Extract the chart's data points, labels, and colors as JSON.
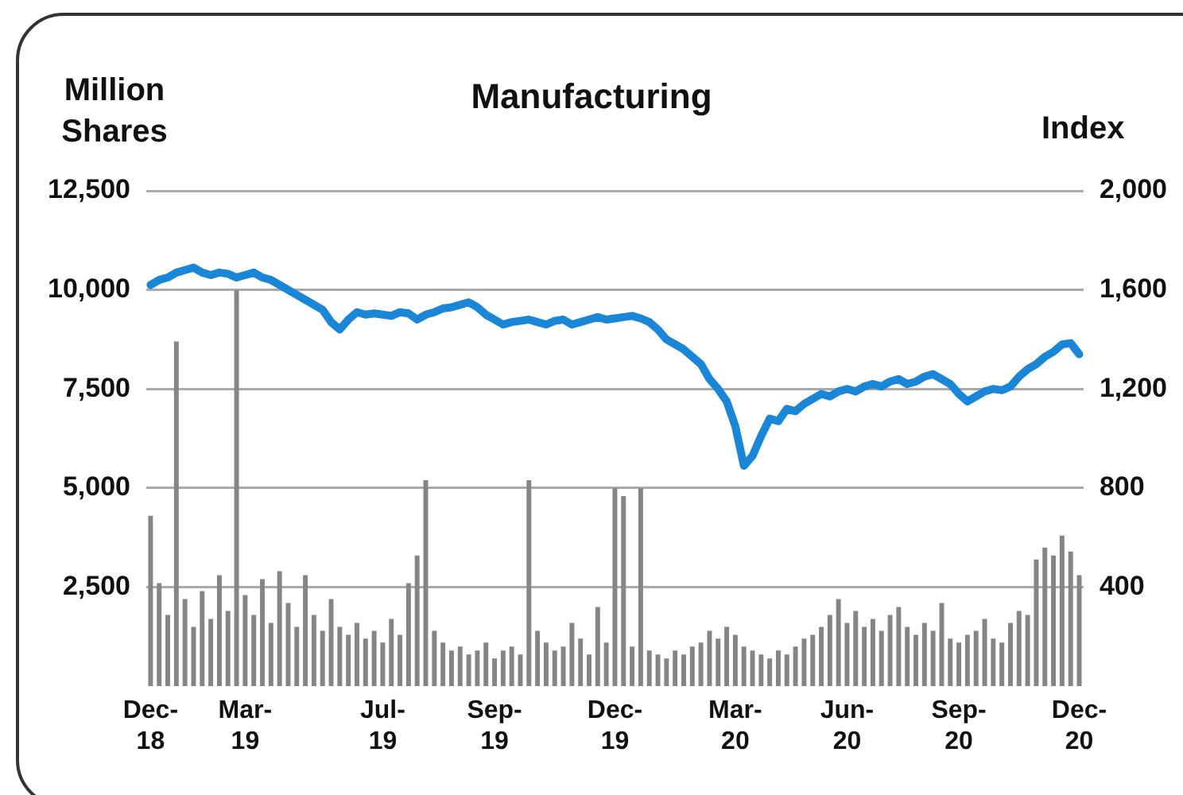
{
  "chart_data": {
    "type": "bar",
    "title": "Manufacturing",
    "ylabel": "Million Shares",
    "y2label": "Index",
    "categories": [
      "Dec-18",
      null,
      null,
      null,
      null,
      null,
      null,
      null,
      null,
      null,
      null,
      "Mar-19",
      null,
      null,
      null,
      null,
      null,
      null,
      null,
      null,
      null,
      null,
      null,
      null,
      null,
      null,
      null,
      "Jul-19",
      null,
      null,
      null,
      null,
      null,
      null,
      null,
      null,
      null,
      null,
      null,
      null,
      "Sep-19",
      null,
      null,
      null,
      null,
      null,
      null,
      null,
      null,
      null,
      null,
      null,
      null,
      null,
      "Dec-19",
      null,
      null,
      null,
      null,
      null,
      null,
      null,
      null,
      null,
      null,
      null,
      null,
      null,
      "Mar-20",
      null,
      null,
      null,
      null,
      null,
      null,
      null,
      null,
      null,
      null,
      null,
      null,
      "Jun-20",
      null,
      null,
      null,
      null,
      null,
      null,
      null,
      null,
      null,
      null,
      null,
      null,
      "Sep-20",
      null,
      null,
      null,
      null,
      null,
      null,
      null,
      null,
      null,
      null,
      null,
      null,
      null,
      "Dec-20"
    ],
    "series": [
      {
        "color": "#858585",
        "values": [
          4300,
          2600,
          1800,
          8700,
          2200,
          1500,
          2400,
          1700,
          2800,
          1900,
          10000,
          2300,
          1800,
          2700,
          1600,
          2900,
          2100,
          1500,
          2800,
          1800,
          1400,
          2200,
          1500,
          1300,
          1600,
          1200,
          1400,
          1100,
          1700,
          1300,
          2600,
          3300,
          5200,
          1400,
          1100,
          900,
          1000,
          800,
          900,
          1100,
          700,
          900,
          1000,
          800,
          5200,
          1400,
          1100,
          900,
          1000,
          1600,
          1200,
          800,
          2000,
          1100,
          5000,
          4800,
          1000,
          5000,
          900,
          800,
          700,
          900,
          800,
          1000,
          1100,
          1400,
          1200,
          1500,
          1300,
          1000,
          900,
          800,
          700,
          900,
          800,
          1000,
          1200,
          1300,
          1500,
          1800,
          2200,
          1600,
          1900,
          1500,
          1700,
          1400,
          1800,
          2000,
          1500,
          1300,
          1600,
          1400,
          2100,
          1200,
          1100,
          1300,
          1400,
          1700,
          1200,
          1100,
          1600,
          1900,
          1800,
          3200,
          3500,
          3300,
          3800,
          3400,
          2800
        ]
      },
      {
        "type": "line",
        "color": "#1a86d8",
        "axis": "y2",
        "values": [
          1620,
          1640,
          1650,
          1670,
          1680,
          1690,
          1670,
          1660,
          1670,
          1665,
          1650,
          1660,
          1670,
          1650,
          1640,
          1620,
          1600,
          1580,
          1560,
          1540,
          1520,
          1470,
          1440,
          1480,
          1510,
          1500,
          1505,
          1500,
          1495,
          1510,
          1505,
          1480,
          1500,
          1510,
          1525,
          1530,
          1540,
          1550,
          1530,
          1500,
          1480,
          1460,
          1470,
          1475,
          1480,
          1470,
          1460,
          1475,
          1480,
          1460,
          1470,
          1480,
          1490,
          1480,
          1485,
          1490,
          1495,
          1485,
          1470,
          1440,
          1400,
          1380,
          1360,
          1330,
          1300,
          1240,
          1200,
          1150,
          1050,
          890,
          930,
          1010,
          1080,
          1070,
          1120,
          1110,
          1140,
          1160,
          1180,
          1170,
          1190,
          1200,
          1190,
          1210,
          1220,
          1210,
          1230,
          1240,
          1220,
          1230,
          1250,
          1260,
          1240,
          1220,
          1180,
          1150,
          1170,
          1190,
          1200,
          1195,
          1210,
          1250,
          1280,
          1300,
          1330,
          1350,
          1380,
          1385,
          1340
        ]
      }
    ],
    "ylim": [
      0,
      12500
    ],
    "yticks": [
      {
        "value": 2500,
        "label": "2,500"
      },
      {
        "value": 5000,
        "label": "5,000"
      },
      {
        "value": 7500,
        "label": "7,500"
      },
      {
        "value": 10000,
        "label": "10,000"
      },
      {
        "value": 12500,
        "label": "12,500"
      }
    ],
    "y2lim": [
      0,
      2000
    ],
    "y2ticks": [
      400,
      800,
      {
        "value": 1200,
        "label": "1,200"
      },
      {
        "value": 1600,
        "label": "1,600"
      },
      {
        "value": 2000,
        "label": "2,000"
      }
    ],
    "grid": "y",
    "legend": false,
    "marker": "none",
    "line_style": "solid"
  }
}
